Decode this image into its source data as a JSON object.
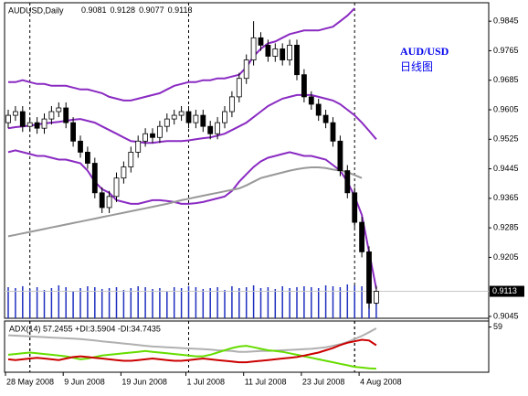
{
  "chart_data": {
    "type": "candlestick",
    "title": "AUDUSD,Daily",
    "annotation": "AUD/USD",
    "annotation_sub": "日线图",
    "up_color": "#ffffff",
    "down_color": "#000000",
    "categories": [
      "28 May 2008",
      null,
      null,
      null,
      null,
      null,
      null,
      null,
      "9 Jun 2008",
      null,
      null,
      null,
      null,
      null,
      null,
      null,
      "19 Jun 2008",
      null,
      null,
      null,
      null,
      null,
      null,
      null,
      null,
      "1 Jul 2008",
      null,
      null,
      null,
      null,
      null,
      null,
      null,
      "11 Jul 2008",
      null,
      null,
      null,
      null,
      null,
      null,
      null,
      "23 Jul 2008",
      null,
      null,
      null,
      null,
      null,
      null,
      null,
      "4 Aug 2008",
      null,
      null
    ],
    "open": [
      0.957,
      0.959,
      0.96,
      0.956,
      0.957,
      0.9555,
      0.958,
      0.96,
      0.961,
      0.957,
      0.952,
      0.949,
      0.946,
      0.938,
      0.934,
      0.937,
      0.942,
      0.945,
      0.949,
      0.952,
      0.954,
      0.953,
      0.956,
      0.958,
      0.959,
      0.96,
      0.957,
      0.959,
      0.956,
      0.954,
      0.957,
      0.96,
      0.964,
      0.969,
      0.974,
      0.98,
      0.978,
      0.975,
      0.977,
      0.974,
      0.978,
      0.97,
      0.964,
      0.962,
      0.959,
      0.957,
      0.952,
      0.944,
      0.938,
      0.93,
      0.922,
      0.9081
    ],
    "high": [
      0.9605,
      0.9615,
      0.9615,
      0.9585,
      0.9585,
      0.9595,
      0.9615,
      0.9625,
      0.9625,
      0.9585,
      0.9535,
      0.9505,
      0.9475,
      0.9395,
      0.9385,
      0.9435,
      0.9465,
      0.9505,
      0.9535,
      0.9555,
      0.9555,
      0.9575,
      0.9595,
      0.9605,
      0.9615,
      0.9615,
      0.9605,
      0.9605,
      0.9575,
      0.9585,
      0.9615,
      0.9655,
      0.9705,
      0.9755,
      0.9845,
      0.9815,
      0.9795,
      0.9785,
      0.9785,
      0.9795,
      0.9795,
      0.9715,
      0.9655,
      0.9635,
      0.9605,
      0.9585,
      0.9535,
      0.9455,
      0.9395,
      0.9315,
      0.9235,
      0.9128
    ],
    "low": [
      0.9555,
      0.9575,
      0.9545,
      0.9545,
      0.954,
      0.954,
      0.9565,
      0.9585,
      0.9555,
      0.9505,
      0.9475,
      0.9445,
      0.9365,
      0.9325,
      0.9325,
      0.9355,
      0.9405,
      0.9435,
      0.9475,
      0.9505,
      0.9515,
      0.9515,
      0.9545,
      0.9565,
      0.9575,
      0.9555,
      0.9555,
      0.9545,
      0.9525,
      0.9525,
      0.9555,
      0.9585,
      0.9625,
      0.9675,
      0.9725,
      0.9765,
      0.9735,
      0.9735,
      0.9725,
      0.9725,
      0.9685,
      0.9625,
      0.9605,
      0.9575,
      0.9555,
      0.9505,
      0.9425,
      0.9365,
      0.9285,
      0.9205,
      0.9066,
      0.9077
    ],
    "close": [
      0.959,
      0.96,
      0.956,
      0.957,
      0.9555,
      0.958,
      0.96,
      0.961,
      0.957,
      0.952,
      0.949,
      0.946,
      0.938,
      0.934,
      0.937,
      0.942,
      0.945,
      0.949,
      0.952,
      0.954,
      0.953,
      0.956,
      0.958,
      0.959,
      0.96,
      0.957,
      0.959,
      0.956,
      0.954,
      0.957,
      0.96,
      0.964,
      0.969,
      0.974,
      0.98,
      0.978,
      0.975,
      0.977,
      0.974,
      0.978,
      0.97,
      0.964,
      0.962,
      0.959,
      0.957,
      0.952,
      0.944,
      0.938,
      0.93,
      0.922,
      0.9081,
      0.9113
    ],
    "ylim": [
      0.904,
      0.9895
    ],
    "yticks": [
      0.9845,
      0.9765,
      0.9685,
      0.9605,
      0.9525,
      0.9445,
      0.9365,
      0.9285,
      0.9205,
      0.9045
    ],
    "lines": [
      {
        "color": "#8a2bc2",
        "values": [
          0.968,
          0.968,
          0.9685,
          0.968,
          0.9675,
          0.9675,
          0.967,
          0.967,
          0.967,
          0.9665,
          0.966,
          0.966,
          0.9655,
          0.965,
          0.964,
          0.9635,
          0.963,
          0.963,
          0.9635,
          0.964,
          0.9645,
          0.965,
          0.966,
          0.967,
          0.9675,
          0.968,
          0.968,
          0.9685,
          0.9685,
          0.969,
          0.969,
          0.9695,
          0.97,
          0.972,
          0.975,
          0.977,
          0.9785,
          0.979,
          0.98,
          0.981,
          0.9815,
          0.982,
          0.982,
          0.982,
          0.9825,
          0.983,
          0.9845,
          0.986,
          0.988,
          null,
          null,
          null
        ]
      },
      {
        "color": "#8a2bc2",
        "values": [
          0.9555,
          0.9558,
          0.956,
          0.9562,
          0.9565,
          0.9568,
          0.957,
          0.9572,
          0.9575,
          0.9578,
          0.958,
          0.9575,
          0.957,
          0.956,
          0.955,
          0.954,
          0.953,
          0.952,
          0.9518,
          0.9515,
          0.9515,
          0.9518,
          0.952,
          0.952,
          0.952,
          0.9522,
          0.9525,
          0.9528,
          0.953,
          0.9535,
          0.954,
          0.955,
          0.956,
          0.957,
          0.9585,
          0.96,
          0.9615,
          0.9625,
          0.9635,
          0.964,
          0.9645,
          0.9645,
          0.9645,
          0.964,
          0.9635,
          0.963,
          0.962,
          0.9605,
          0.959,
          0.957,
          0.9548,
          0.9525
        ]
      },
      {
        "color": "#8a2bc2",
        "values": [
          0.949,
          0.9495,
          0.949,
          0.9485,
          0.948,
          0.948,
          0.9475,
          0.947,
          0.947,
          0.9465,
          0.946,
          0.944,
          0.941,
          0.939,
          0.938,
          0.936,
          0.9355,
          0.935,
          0.935,
          0.9355,
          0.936,
          0.936,
          0.9358,
          0.9355,
          0.935,
          0.935,
          0.9352,
          0.9355,
          0.936,
          0.9365,
          0.937,
          0.9385,
          0.941,
          0.943,
          0.945,
          0.9465,
          0.9475,
          0.948,
          0.9485,
          0.949,
          0.9485,
          0.948,
          0.948,
          0.9475,
          0.947,
          0.9455,
          0.944,
          0.941,
          0.937,
          0.932,
          0.922,
          0.912
        ]
      },
      {
        "color": "#999999",
        "values": [
          0.9262,
          0.9266,
          0.927,
          0.9274,
          0.9278,
          0.9282,
          0.9286,
          0.929,
          0.9294,
          0.9298,
          0.9302,
          0.9306,
          0.931,
          0.9314,
          0.9318,
          0.9322,
          0.9326,
          0.933,
          0.9334,
          0.9338,
          0.9342,
          0.9346,
          0.935,
          0.9355,
          0.936,
          0.9364,
          0.9368,
          0.9372,
          0.9376,
          0.938,
          0.9384,
          0.9388,
          0.9392,
          0.94,
          0.941,
          0.942,
          0.9425,
          0.943,
          0.9435,
          0.944,
          0.9444,
          0.9447,
          0.9449,
          0.9449,
          0.9447,
          0.9443,
          0.944,
          0.9436,
          0.9428,
          0.942,
          null,
          null
        ]
      }
    ],
    "volume": {
      "color": "#1f2fbf",
      "values": [
        34,
        33,
        35,
        32,
        34,
        31,
        33,
        36,
        34,
        30,
        33,
        35,
        34,
        32,
        33,
        34,
        31,
        33,
        35,
        34,
        32,
        33,
        30,
        34,
        33,
        35,
        34,
        32,
        33,
        34,
        31,
        35,
        33,
        34,
        36,
        33,
        34,
        32,
        35,
        33,
        34,
        35,
        34,
        33,
        36,
        35,
        34,
        37,
        36,
        35,
        34,
        22
      ]
    },
    "indicator": {
      "title": "ADX(14) 57.2455 +DI:3.5904 -DI:34.7435",
      "ylim": [
        0,
        67
      ],
      "yticks": [
        59
      ],
      "lines": [
        {
          "color": "#b0b0b0",
          "values": [
            48,
            47.5,
            47,
            46.5,
            46,
            45.5,
            45,
            44.5,
            44,
            43.5,
            43,
            42,
            41,
            40,
            39,
            38,
            37,
            36,
            35,
            34,
            33,
            32.5,
            32,
            31.5,
            31,
            30.5,
            30,
            29.5,
            29,
            28,
            27.5,
            27,
            26,
            26,
            26.5,
            27,
            27,
            27.5,
            28,
            28.5,
            29,
            29.5,
            30,
            31,
            32,
            34,
            36,
            39,
            43,
            47,
            52,
            57.2455
          ]
        },
        {
          "color": "#66dd00",
          "values": [
            22,
            23,
            24,
            25,
            24,
            23,
            22,
            21,
            20,
            18,
            16,
            17,
            19,
            21,
            22,
            23,
            24,
            25,
            26,
            27,
            26,
            25,
            24,
            23,
            22,
            21,
            20,
            20,
            22,
            25,
            28,
            31,
            33,
            34,
            32,
            30,
            28,
            27,
            26,
            24,
            22,
            20,
            18,
            16,
            14,
            12,
            10,
            8,
            6,
            5,
            4,
            3.5904
          ]
        },
        {
          "color": "#cc0000",
          "values": [
            16,
            15,
            16,
            17,
            18,
            17,
            16,
            15,
            17,
            19,
            20,
            19,
            18,
            17,
            16,
            15,
            14,
            14,
            15,
            16,
            17,
            16,
            15,
            14,
            14,
            15,
            16,
            17,
            16,
            15,
            14,
            13,
            12,
            12,
            13,
            14,
            15,
            16,
            17,
            18,
            19,
            21,
            23,
            25,
            28,
            31,
            35,
            38,
            40,
            42,
            41,
            34.7435
          ]
        }
      ]
    }
  }
}
